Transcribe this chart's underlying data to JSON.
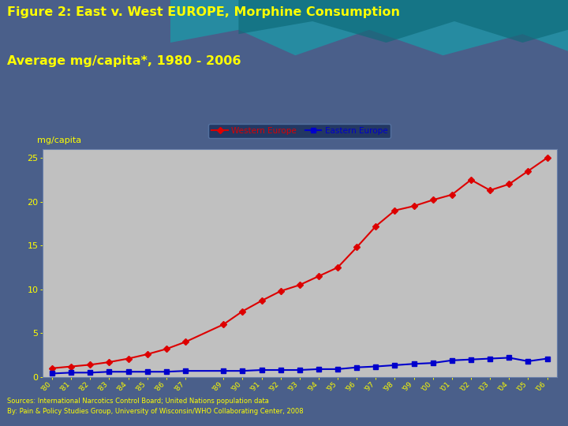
{
  "title_line1": "Figure 2: East v. West EUROPE, Morphine Consumption",
  "title_line2": "Average mg/capita*, 1980 - 2006",
  "ylabel": "mg/capita",
  "years": [
    1980,
    1981,
    1982,
    1983,
    1984,
    1985,
    1986,
    1987,
    1989,
    1990,
    1991,
    1992,
    1993,
    1994,
    1995,
    1996,
    1997,
    1998,
    1999,
    2000,
    2001,
    2002,
    2003,
    2004,
    2005,
    2006
  ],
  "western_europe": [
    1.0,
    1.2,
    1.4,
    1.7,
    2.1,
    2.6,
    3.2,
    4.0,
    6.0,
    7.5,
    8.7,
    9.8,
    10.5,
    11.5,
    12.5,
    14.8,
    17.2,
    19.0,
    19.5,
    20.2,
    20.8,
    22.5,
    21.3,
    22.0,
    23.5,
    25.0
  ],
  "eastern_europe": [
    0.4,
    0.5,
    0.5,
    0.6,
    0.6,
    0.6,
    0.6,
    0.7,
    0.7,
    0.7,
    0.8,
    0.8,
    0.8,
    0.9,
    0.9,
    1.1,
    1.2,
    1.35,
    1.5,
    1.6,
    1.9,
    2.0,
    2.1,
    2.2,
    1.8,
    2.1
  ],
  "west_color": "#DD0000",
  "east_color": "#0000CC",
  "bg_color": "#4a5f8a",
  "chart_border_color": "#1a2f5a",
  "plot_bg": "#c0c0c0",
  "title_color": "#FFFF00",
  "ylabel_color": "#FFFF00",
  "tick_color": "#FFFF00",
  "legend_bg": "#1a2f5a",
  "legend_edge": "#5a7aaa",
  "legend_text_west": "Western Europe",
  "legend_text_east": "Eastern Europe",
  "source_line1": "Sources: International Narcotics Control Board; United Nations population data",
  "source_line2": "By: Pain & Policy Studies Group, University of Wisconsin/WHO Collaborating Center, 2008",
  "source_color": "#FFFF00",
  "ylim": [
    0,
    26
  ],
  "yticks": [
    0,
    5,
    10,
    15,
    20,
    25
  ],
  "title_fontsize": 11.5,
  "source_fontsize": 6.0
}
